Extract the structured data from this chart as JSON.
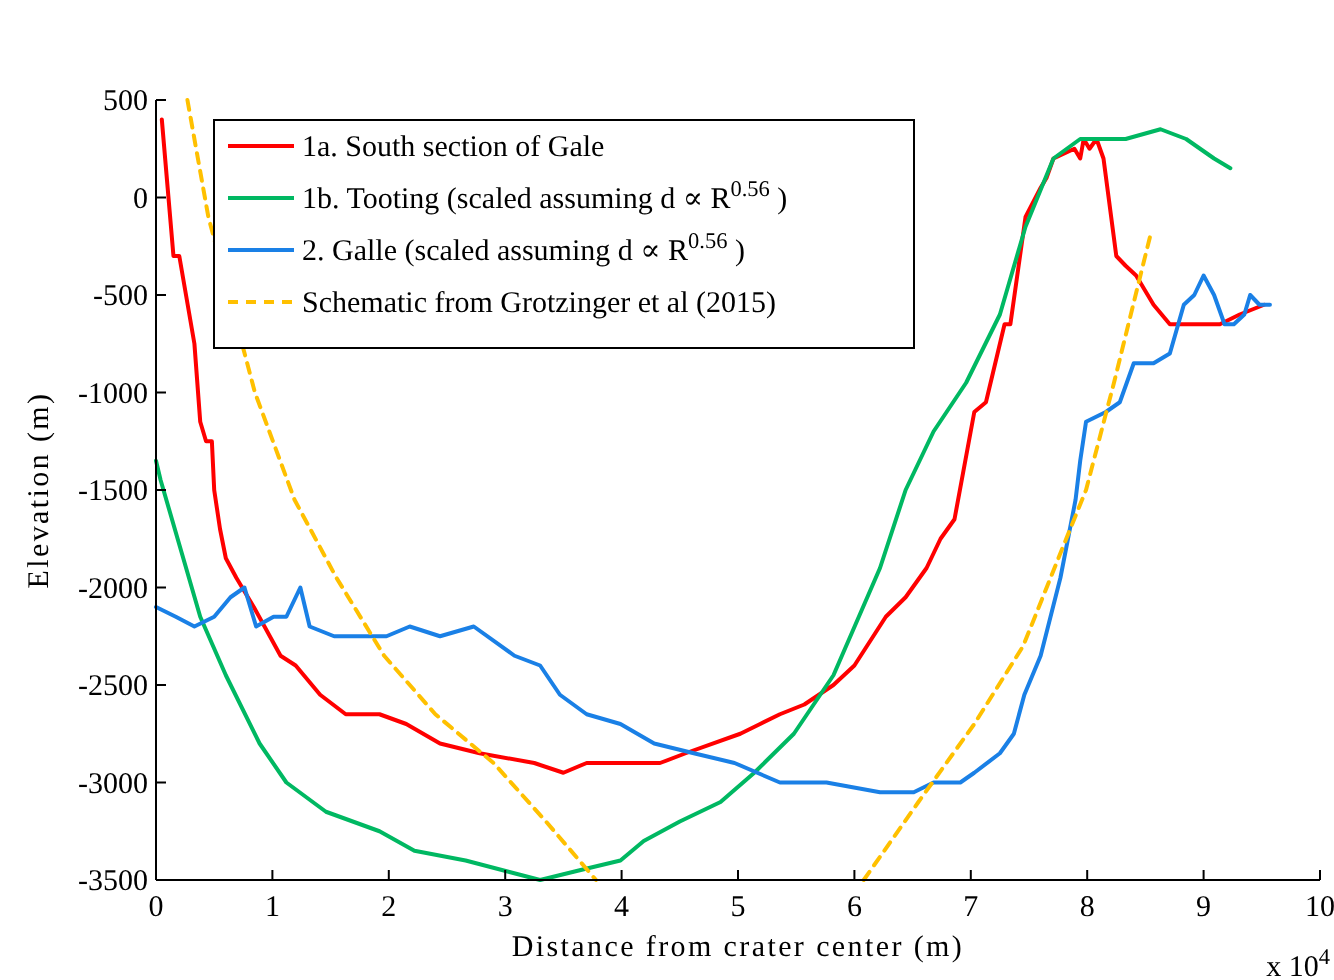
{
  "chart_data": {
    "type": "line",
    "xlabel": "Distance from crater center (m)",
    "ylabel": "Elevation (m)",
    "xlim": [
      0,
      10
    ],
    "xticks": [
      0,
      1,
      2,
      3,
      4,
      5,
      6,
      7,
      8,
      9,
      10
    ],
    "ylim": [
      -3500,
      500
    ],
    "yticks": [
      -3500,
      -3000,
      -2500,
      -2000,
      -1500,
      -1000,
      -500,
      0,
      500
    ],
    "annotations": [
      "x 10$^{4}$"
    ],
    "legend": "top left",
    "grid": false,
    "line_style": "solid",
    "marker": "none",
    "series": [
      {
        "name": "1a. South section of Gale",
        "color": "#ff0000",
        "x": [
          0.05,
          0.1,
          0.15,
          0.2,
          0.33,
          0.38,
          0.43,
          0.48,
          0.5,
          0.55,
          0.6,
          0.69,
          0.84,
          1.07,
          1.2,
          1.41,
          1.63,
          1.92,
          2.15,
          2.44,
          2.78,
          3.25,
          3.5,
          3.7,
          4.04,
          4.33,
          4.55,
          5.02,
          5.19,
          5.36,
          5.57,
          5.82,
          6.0,
          6.27,
          6.44,
          6.62,
          6.74,
          6.86,
          7.03,
          7.13,
          7.29,
          7.34,
          7.47,
          7.6,
          7.65,
          7.71,
          7.89,
          7.94,
          7.97,
          8.02,
          8.08,
          8.14,
          8.25,
          8.33,
          8.42,
          8.57,
          8.71,
          8.97,
          9.14,
          9.31,
          9.52
        ],
        "values": [
          400,
          50,
          -300,
          -300,
          -750,
          -1150,
          -1250,
          -1250,
          -1500,
          -1700,
          -1850,
          -1950,
          -2100,
          -2350,
          -2400,
          -2550,
          -2650,
          -2650,
          -2700,
          -2800,
          -2850,
          -2900,
          -2950,
          -2900,
          -2900,
          -2900,
          -2850,
          -2750,
          -2700,
          -2650,
          -2600,
          -2500,
          -2400,
          -2150,
          -2050,
          -1900,
          -1750,
          -1650,
          -1100,
          -1050,
          -650,
          -650,
          -100,
          50,
          100,
          200,
          250,
          200,
          300,
          250,
          300,
          200,
          -300,
          -350,
          -400,
          -550,
          -650,
          -650,
          -650,
          -600,
          -550
        ]
      },
      {
        "name": "1b. Tooting (scaled assuming d ∝ R$^{0.56}$ )",
        "color": "#00b862",
        "x": [
          0,
          0.04,
          0.38,
          0.6,
          0.89,
          1.12,
          1.46,
          1.92,
          2.22,
          2.66,
          3.3,
          3.64,
          3.99,
          4.19,
          4.5,
          4.85,
          5.14,
          5.48,
          5.82,
          6.22,
          6.44,
          6.68,
          6.96,
          7.25,
          7.47,
          7.71,
          7.94,
          8.33,
          8.63,
          8.85,
          9.09,
          9.23
        ],
        "values": [
          -1350,
          -1450,
          -2150,
          -2450,
          -2800,
          -3000,
          -3150,
          -3250,
          -3350,
          -3400,
          -3500,
          -3450,
          -3400,
          -3300,
          -3200,
          -3100,
          -2950,
          -2750,
          -2450,
          -1900,
          -1500,
          -1200,
          -950,
          -600,
          -150,
          200,
          300,
          300,
          350,
          300,
          200,
          150
        ]
      },
      {
        "name": "2. Galle (scaled assuming d ∝ R$^{0.56}$ )",
        "color": "#1a80e6",
        "x": [
          0,
          0.17,
          0.33,
          0.5,
          0.64,
          0.76,
          0.86,
          1.01,
          1.12,
          1.24,
          1.32,
          1.53,
          1.67,
          1.98,
          2.18,
          2.44,
          2.73,
          3.08,
          3.3,
          3.47,
          3.7,
          3.99,
          4.28,
          4.62,
          4.97,
          5.36,
          5.76,
          6.22,
          6.51,
          6.68,
          6.91,
          7.03,
          7.25,
          7.37,
          7.46,
          7.6,
          7.77,
          7.9,
          7.94,
          7.99,
          8.16,
          8.28,
          8.4,
          8.57,
          8.71,
          8.83,
          8.92,
          9.0,
          9.09,
          9.18,
          9.26,
          9.35,
          9.4,
          9.48,
          9.57
        ],
        "values": [
          -2100,
          -2150,
          -2200,
          -2150,
          -2050,
          -2000,
          -2200,
          -2150,
          -2150,
          -2000,
          -2200,
          -2250,
          -2250,
          -2250,
          -2200,
          -2250,
          -2200,
          -2350,
          -2400,
          -2550,
          -2650,
          -2700,
          -2800,
          -2850,
          -2900,
          -3000,
          -3000,
          -3050,
          -3050,
          -3000,
          -3000,
          -2950,
          -2850,
          -2750,
          -2550,
          -2350,
          -1950,
          -1550,
          -1350,
          -1150,
          -1100,
          -1050,
          -850,
          -850,
          -800,
          -550,
          -500,
          -400,
          -500,
          -650,
          -650,
          -600,
          -500,
          -550,
          -550
        ]
      },
      {
        "name": "Schematic from Grotzinger et al (2015)",
        "color": "#ffc000",
        "line_style": "dashed",
        "x": [
          0.27,
          0.45,
          0.85,
          1.19,
          1.55,
          1.96,
          2.4,
          2.9,
          3.35,
          3.78,
          null,
          6.08,
          6.55,
          7.03,
          7.45,
          7.82,
          7.99,
          8.23,
          8.54
        ],
        "values": [
          500,
          -100,
          -1000,
          -1550,
          -1950,
          -2350,
          -2650,
          -2900,
          -3200,
          -3500,
          null,
          -3500,
          -3100,
          -2700,
          -2300,
          -1750,
          -1500,
          -950,
          -200
        ]
      }
    ]
  }
}
